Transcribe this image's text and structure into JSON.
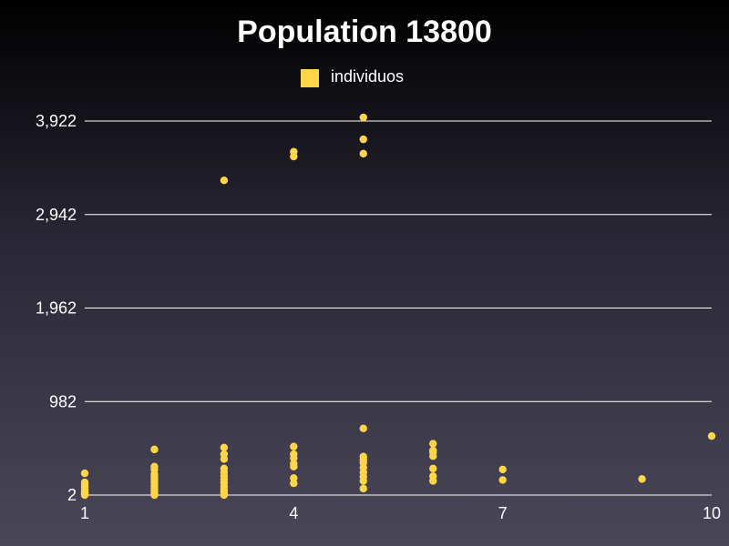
{
  "chart_data": {
    "type": "scatter",
    "title": "Population 13800",
    "xlabel": "",
    "ylabel": "",
    "legend": {
      "position": "top-center"
    },
    "grid": {
      "x": false,
      "y": true
    },
    "xlim": [
      1,
      10
    ],
    "ylim": [
      2,
      3922
    ],
    "x_ticks": [
      1,
      4,
      7,
      10
    ],
    "y_ticks": [
      2,
      982,
      1962,
      2942,
      3922
    ],
    "x_tick_labels": [
      "1",
      "4",
      "7",
      "10"
    ],
    "y_tick_labels": [
      "2",
      "982",
      "1,962",
      "2,942",
      "3,922"
    ],
    "colors": {
      "series": "#ffd54a",
      "grid": "#ffffff",
      "text": "#ffffff"
    },
    "series": [
      {
        "name": "individuos",
        "points": [
          [
            1,
            2
          ],
          [
            1,
            12
          ],
          [
            1,
            25
          ],
          [
            1,
            40
          ],
          [
            1,
            60
          ],
          [
            1,
            85
          ],
          [
            1,
            110
          ],
          [
            1,
            135
          ],
          [
            1,
            230
          ],
          [
            2,
            2
          ],
          [
            2,
            20
          ],
          [
            2,
            45
          ],
          [
            2,
            70
          ],
          [
            2,
            100
          ],
          [
            2,
            130
          ],
          [
            2,
            160
          ],
          [
            2,
            190
          ],
          [
            2,
            220
          ],
          [
            2,
            270
          ],
          [
            2,
            300
          ],
          [
            2,
            480
          ],
          [
            3,
            2
          ],
          [
            3,
            25
          ],
          [
            3,
            55
          ],
          [
            3,
            90
          ],
          [
            3,
            130
          ],
          [
            3,
            165
          ],
          [
            3,
            200
          ],
          [
            3,
            240
          ],
          [
            3,
            280
          ],
          [
            3,
            380
          ],
          [
            3,
            430
          ],
          [
            3,
            500
          ],
          [
            3,
            3300
          ],
          [
            4,
            125
          ],
          [
            4,
            180
          ],
          [
            4,
            300
          ],
          [
            4,
            330
          ],
          [
            4,
            390
          ],
          [
            4,
            430
          ],
          [
            4,
            510
          ],
          [
            4,
            3550
          ],
          [
            4,
            3600
          ],
          [
            5,
            70
          ],
          [
            5,
            150
          ],
          [
            5,
            195
          ],
          [
            5,
            240
          ],
          [
            5,
            290
          ],
          [
            5,
            340
          ],
          [
            5,
            370
          ],
          [
            5,
            405
          ],
          [
            5,
            700
          ],
          [
            5,
            3580
          ],
          [
            5,
            3730
          ],
          [
            5,
            3960
          ],
          [
            6,
            150
          ],
          [
            6,
            200
          ],
          [
            6,
            280
          ],
          [
            6,
            410
          ],
          [
            6,
            450
          ],
          [
            6,
            470
          ],
          [
            6,
            540
          ],
          [
            7,
            160
          ],
          [
            7,
            270
          ],
          [
            9,
            170
          ],
          [
            10,
            620
          ]
        ]
      }
    ]
  }
}
